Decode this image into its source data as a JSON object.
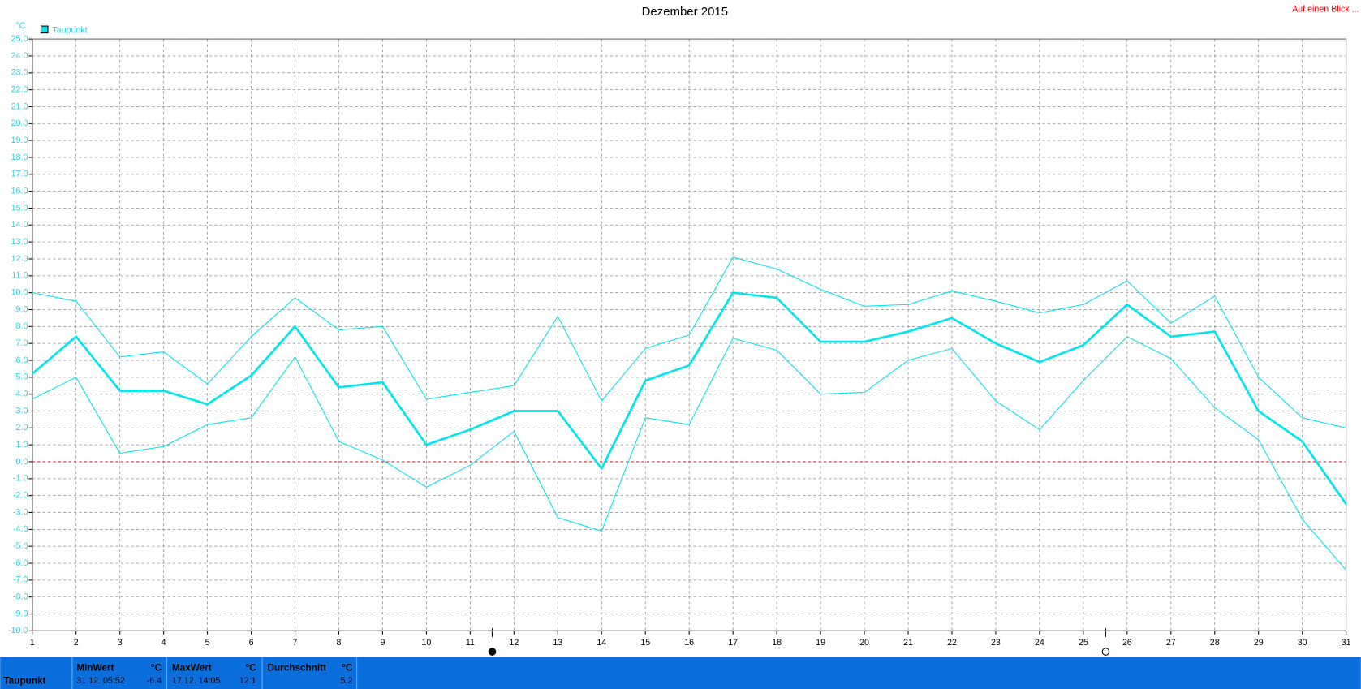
{
  "chart_data": {
    "type": "line",
    "title": "Dezember 2015",
    "link": "Auf einen Blick ...",
    "y_unit": "°C",
    "categories": [
      "1",
      "2",
      "3",
      "4",
      "5",
      "6",
      "7",
      "8",
      "9",
      "10",
      "11",
      "12",
      "13",
      "14",
      "15",
      "16",
      "17",
      "18",
      "19",
      "20",
      "21",
      "22",
      "23",
      "24",
      "25",
      "26",
      "27",
      "28",
      "29",
      "30",
      "31"
    ],
    "series": [
      {
        "name": "Taupunkt",
        "color": "#00e5ee",
        "width": 2.5,
        "values": [
          5.2,
          7.4,
          4.2,
          4.2,
          3.4,
          5.1,
          8.0,
          4.4,
          4.7,
          1.0,
          1.9,
          3.0,
          3.0,
          -0.4,
          4.8,
          5.7,
          10.0,
          9.7,
          7.1,
          7.1,
          7.7,
          8.5,
          7.0,
          5.9,
          6.9,
          9.3,
          7.4,
          7.7,
          3.0,
          1.2,
          -2.5
        ]
      },
      {
        "color": "#00e5ee",
        "width": 1,
        "values": [
          10.0,
          9.5,
          6.2,
          6.5,
          4.6,
          7.4,
          9.7,
          7.8,
          8.0,
          3.7,
          4.1,
          4.5,
          8.6,
          3.6,
          6.7,
          7.5,
          12.1,
          11.4,
          10.2,
          9.2,
          9.3,
          10.1,
          9.5,
          8.8,
          9.3,
          10.7,
          8.2,
          9.8,
          5.0,
          2.6,
          2.0
        ]
      },
      {
        "color": "#00e5ee",
        "width": 1,
        "values": [
          3.7,
          5.0,
          0.5,
          0.9,
          2.2,
          2.6,
          6.2,
          1.2,
          0.1,
          -1.5,
          -0.2,
          1.8,
          -3.3,
          -4.1,
          2.6,
          2.2,
          7.3,
          6.6,
          4.0,
          4.1,
          6.0,
          6.7,
          3.6,
          1.9,
          4.8,
          7.4,
          6.1,
          3.2,
          1.3,
          -3.4,
          -6.4
        ]
      }
    ],
    "ylim": [
      -10,
      25
    ],
    "yticks": [
      {
        "value": -10,
        "label": "-10.0"
      },
      {
        "value": -9,
        "label": "-9.0"
      },
      {
        "value": -8,
        "label": "-8.0"
      },
      {
        "value": -7,
        "label": "-7.0"
      },
      {
        "value": -6,
        "label": "-6.0"
      },
      {
        "value": -5,
        "label": "-5.0"
      },
      {
        "value": -4,
        "label": "-4.0"
      },
      {
        "value": -3,
        "label": "-3.0"
      },
      {
        "value": -2,
        "label": "-2.0"
      },
      {
        "value": -1,
        "label": "-1.0"
      },
      {
        "value": 0,
        "label": "0.0"
      },
      {
        "value": 1,
        "label": "1.0"
      },
      {
        "value": 2,
        "label": "2.0"
      },
      {
        "value": 3,
        "label": "3.0"
      },
      {
        "value": 4,
        "label": "4.0"
      },
      {
        "value": 5,
        "label": "5.0"
      },
      {
        "value": 6,
        "label": "6.0"
      },
      {
        "value": 7,
        "label": "7.0"
      },
      {
        "value": 8,
        "label": "8.0"
      },
      {
        "value": 9,
        "label": "9.0"
      },
      {
        "value": 10,
        "label": "10.0"
      },
      {
        "value": 11,
        "label": "11.0"
      },
      {
        "value": 12,
        "label": "12.0"
      },
      {
        "value": 13,
        "label": "13.0"
      },
      {
        "value": 14,
        "label": "14.0"
      },
      {
        "value": 15,
        "label": "15.0"
      },
      {
        "value": 16,
        "label": "16.0"
      },
      {
        "value": 17,
        "label": "17.0"
      },
      {
        "value": 18,
        "label": "18.0"
      },
      {
        "value": 19,
        "label": "19.0"
      },
      {
        "value": 20,
        "label": "20.0"
      },
      {
        "value": 21,
        "label": "21.0"
      },
      {
        "value": 22,
        "label": "22.0"
      },
      {
        "value": 23,
        "label": "23.0"
      },
      {
        "value": 24,
        "label": "24.0"
      },
      {
        "value": 25,
        "label": "25.0"
      }
    ],
    "grid": true,
    "zero_line_color": "#dd0000",
    "stats": {
      "label": "Taupunkt",
      "min": {
        "title": "MinWert",
        "unit": "°C",
        "time": "31.12.  05:52",
        "value": -6.4
      },
      "max": {
        "title": "MaxWert",
        "unit": "°C",
        "time": "17.12.  14:05",
        "value": 12.1
      },
      "avg": {
        "title": "Durchschnitt",
        "unit": "°C",
        "value": 5.2
      }
    }
  }
}
